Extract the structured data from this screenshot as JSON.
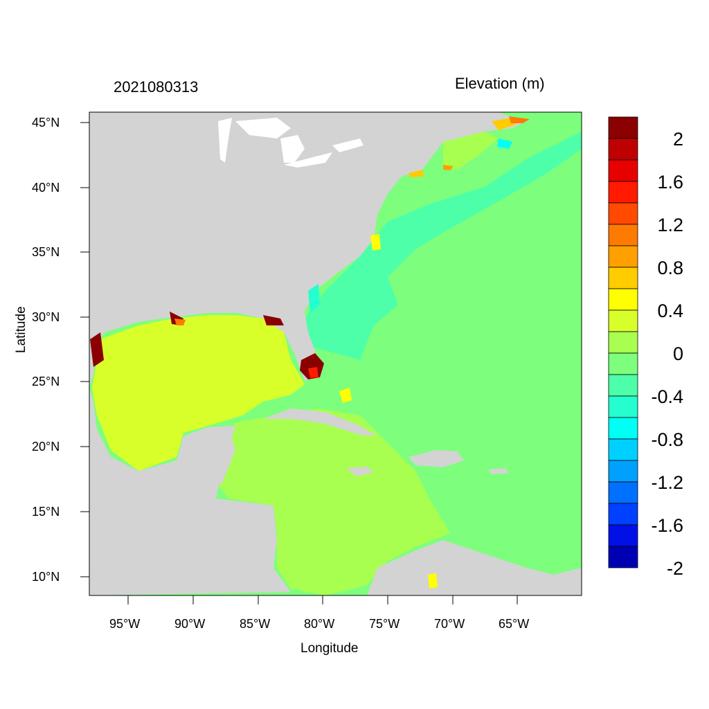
{
  "map": {
    "date_label": "2021080313",
    "variable_label": "Elevation (m)",
    "x_axis_label": "Longitude",
    "y_axis_label": "Latitude",
    "lon_ticks": [
      "95°W",
      "90°W",
      "85°W",
      "80°W",
      "75°W",
      "70°W",
      "65°W"
    ],
    "lat_ticks": [
      "45°N",
      "40°N",
      "35°N",
      "30°N",
      "25°N",
      "20°N",
      "15°N",
      "10°N"
    ],
    "land_color": "#d3d3d3"
  },
  "colorbar": {
    "labels": [
      "2",
      "1.6",
      "1.2",
      "0.8",
      "0.4",
      "0",
      "-0.4",
      "-0.8",
      "-1.2",
      "-1.6",
      "-2"
    ],
    "colors": [
      "#8b0000",
      "#bf0000",
      "#e60000",
      "#ff1a00",
      "#ff4a00",
      "#ff7a00",
      "#ffa000",
      "#ffcc00",
      "#ffff00",
      "#d9ff2a",
      "#a8ff50",
      "#7dff7d",
      "#4dffa8",
      "#25ffd0",
      "#00fff5",
      "#00d0ff",
      "#00a0ff",
      "#0070ff",
      "#0040ff",
      "#0010e6",
      "#0000b3"
    ]
  }
}
